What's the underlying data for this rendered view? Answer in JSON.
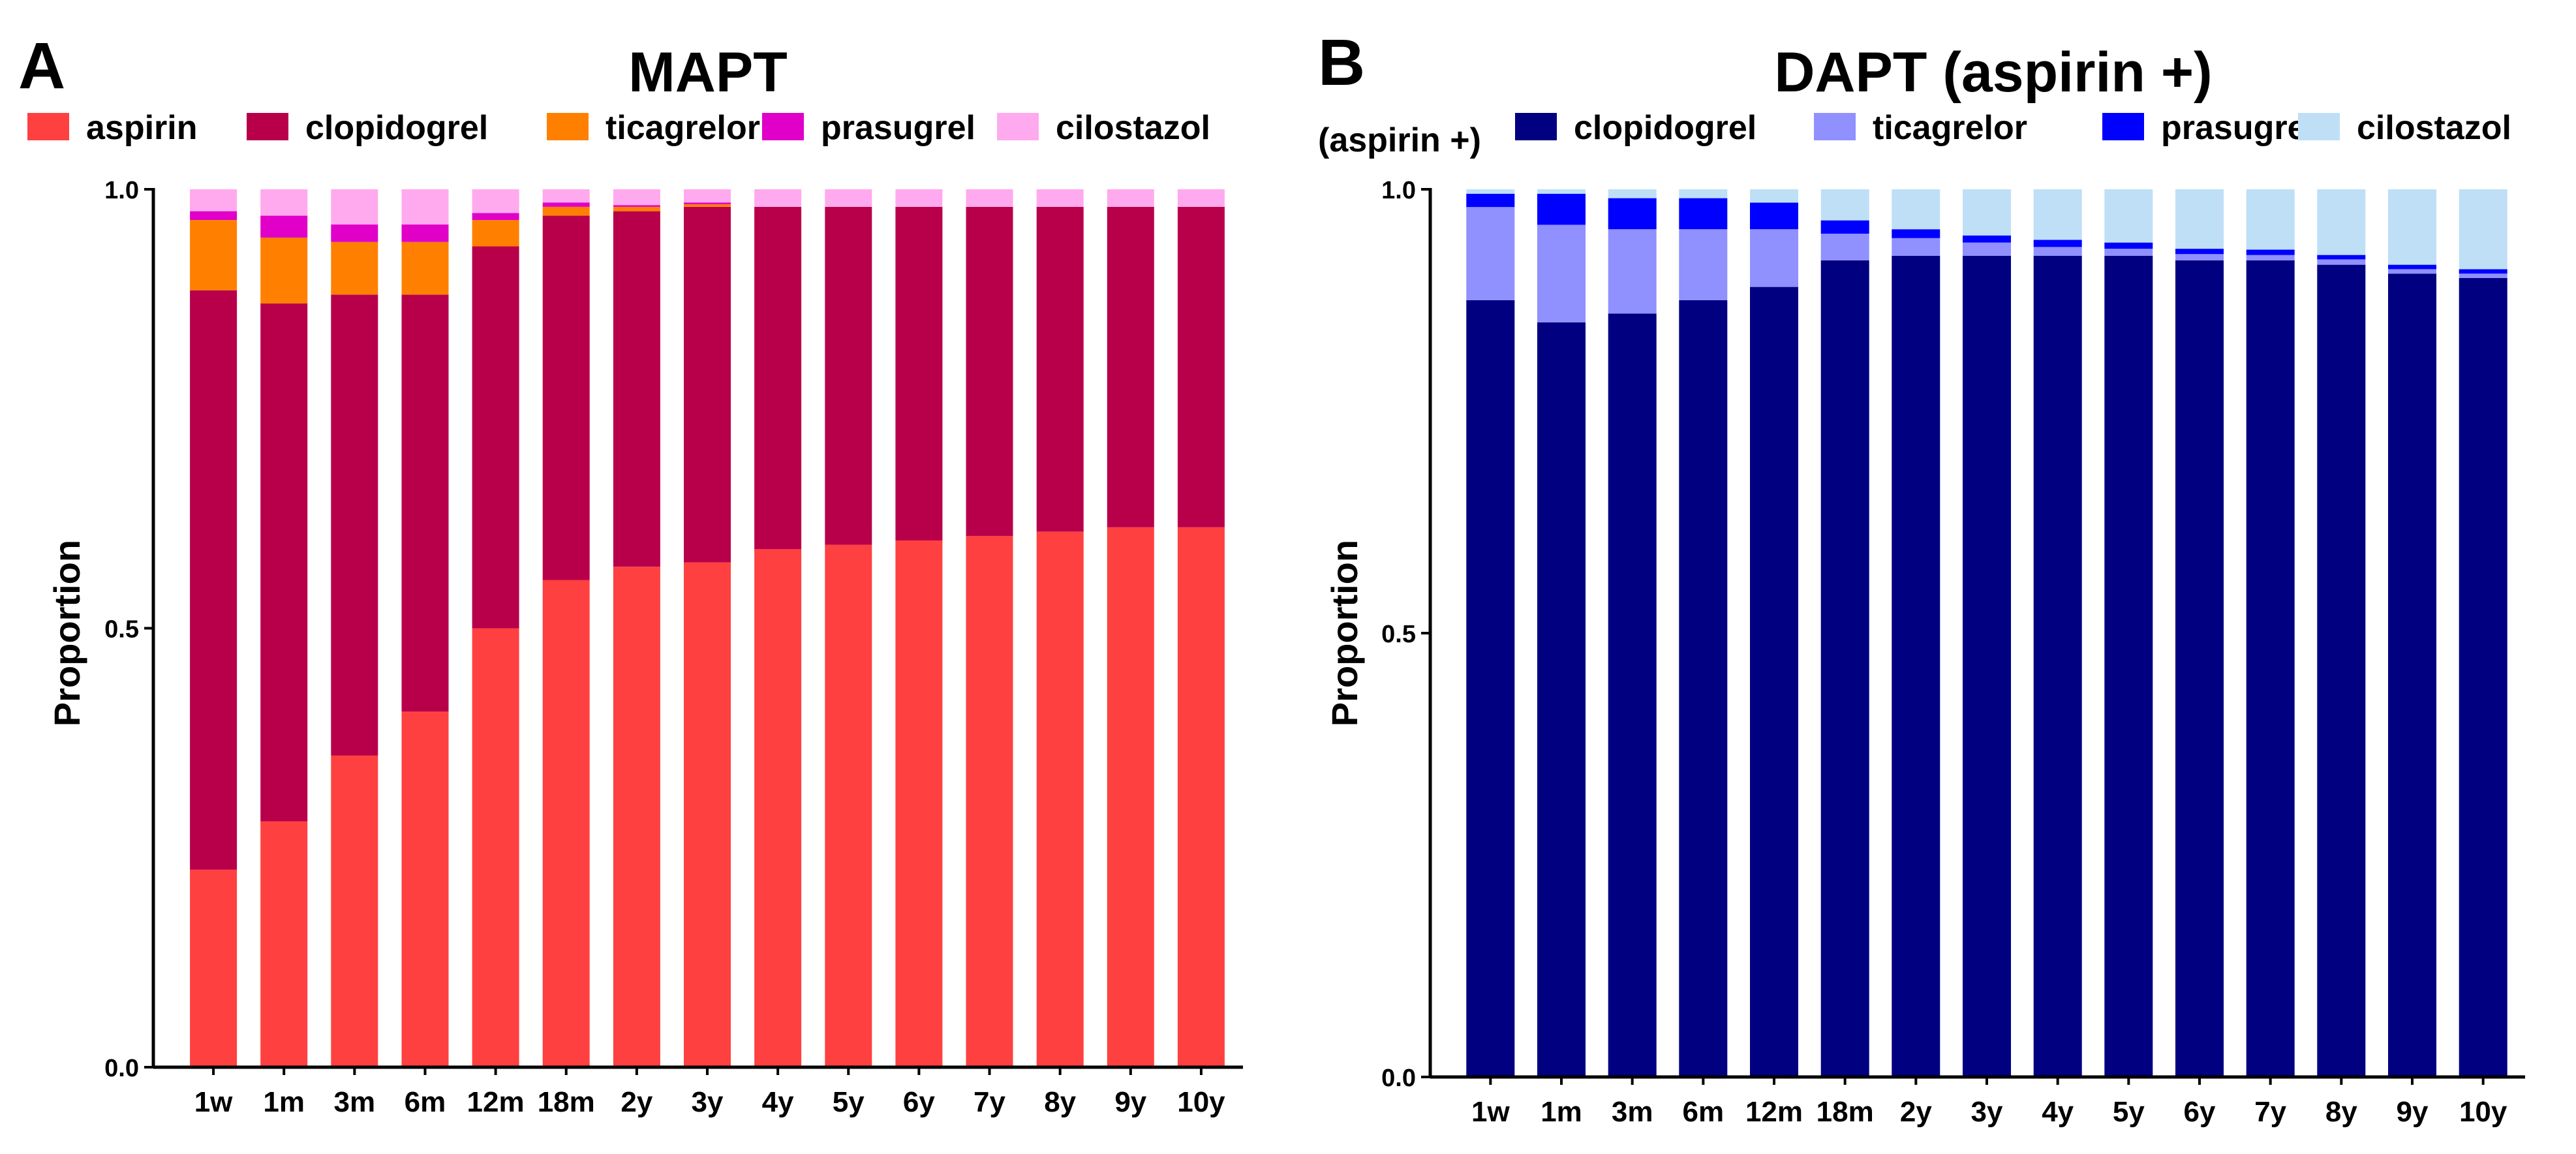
{
  "chart_data": [
    {
      "type": "bar",
      "stacked": true,
      "panel_label": "A",
      "title": "MAPT",
      "xlabel": "",
      "ylabel": "Proportion",
      "ylim": [
        0,
        1
      ],
      "yticks": [
        0.0,
        0.5,
        1.0
      ],
      "ytick_labels": [
        "0.0",
        "0.5",
        "1.0"
      ],
      "legend_position": "top",
      "categories": [
        "1w",
        "1m",
        "3m",
        "6m",
        "12m",
        "18m",
        "2y",
        "3y",
        "4y",
        "5y",
        "6y",
        "7y",
        "8y",
        "9y",
        "10y"
      ],
      "series": [
        {
          "name": "aspirin",
          "color": "#ff4040",
          "values": [
            0.225,
            0.28,
            0.355,
            0.405,
            0.5,
            0.555,
            0.57,
            0.575,
            0.59,
            0.595,
            0.6,
            0.605,
            0.61,
            0.615,
            0.615
          ]
        },
        {
          "name": "clopidogrel",
          "color": "#b8004a",
          "values": [
            0.66,
            0.59,
            0.525,
            0.475,
            0.435,
            0.415,
            0.405,
            0.405,
            0.39,
            0.385,
            0.38,
            0.375,
            0.37,
            0.365,
            0.365
          ]
        },
        {
          "name": "ticagrelor",
          "color": "#ff8000",
          "values": [
            0.08,
            0.075,
            0.06,
            0.06,
            0.03,
            0.01,
            0.005,
            0.003,
            0,
            0,
            0,
            0,
            0,
            0,
            0
          ]
        },
        {
          "name": "prasugrel",
          "color": "#e000c8",
          "values": [
            0.01,
            0.025,
            0.02,
            0.02,
            0.008,
            0.005,
            0.002,
            0.002,
            0,
            0,
            0,
            0,
            0,
            0,
            0
          ]
        },
        {
          "name": "cilostazol",
          "color": "#ffaaee",
          "values": [
            0.025,
            0.03,
            0.04,
            0.04,
            0.027,
            0.015,
            0.018,
            0.015,
            0.02,
            0.02,
            0.02,
            0.02,
            0.02,
            0.02,
            0.02
          ]
        }
      ]
    },
    {
      "type": "bar",
      "stacked": true,
      "panel_label": "B",
      "title": "DAPT (aspirin +)",
      "legend_prefix": "(aspirin +)",
      "xlabel": "",
      "ylabel": "Proportion",
      "ylim": [
        0,
        1
      ],
      "yticks": [
        0.0,
        0.5,
        1.0
      ],
      "ytick_labels": [
        "0.0",
        "0.5",
        "1.0"
      ],
      "legend_position": "top",
      "categories": [
        "1w",
        "1m",
        "3m",
        "6m",
        "12m",
        "18m",
        "2y",
        "3y",
        "4y",
        "5y",
        "6y",
        "7y",
        "8y",
        "9y",
        "10y"
      ],
      "series": [
        {
          "name": "clopidogrel",
          "color": "#000080",
          "values": [
            0.875,
            0.85,
            0.86,
            0.875,
            0.89,
            0.92,
            0.925,
            0.925,
            0.925,
            0.925,
            0.92,
            0.92,
            0.915,
            0.905,
            0.9
          ]
        },
        {
          "name": "ticagrelor",
          "color": "#9090ff",
          "values": [
            0.105,
            0.11,
            0.095,
            0.08,
            0.065,
            0.03,
            0.02,
            0.015,
            0.01,
            0.008,
            0.007,
            0.006,
            0.006,
            0.005,
            0.005
          ]
        },
        {
          "name": "prasugrel",
          "color": "#0000ff",
          "values": [
            0.015,
            0.035,
            0.035,
            0.035,
            0.03,
            0.015,
            0.01,
            0.008,
            0.008,
            0.007,
            0.006,
            0.006,
            0.005,
            0.005,
            0.005
          ]
        },
        {
          "name": "cilostazol",
          "color": "#bfdff7",
          "values": [
            0.005,
            0.005,
            0.01,
            0.01,
            0.015,
            0.035,
            0.045,
            0.052,
            0.057,
            0.06,
            0.067,
            0.068,
            0.074,
            0.085,
            0.09
          ]
        }
      ]
    }
  ]
}
